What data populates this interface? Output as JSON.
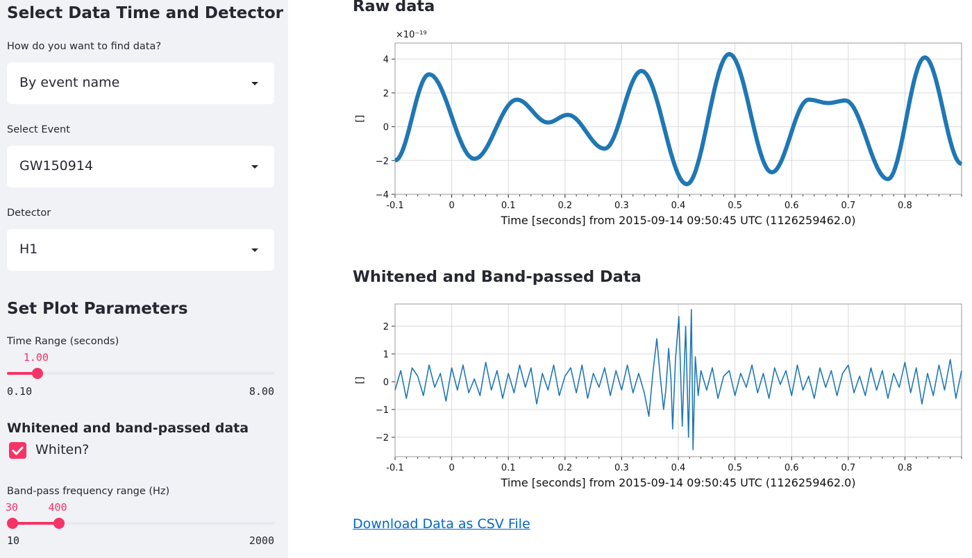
{
  "sidebar": {
    "title": "Select Data Time and Detector",
    "find_label": "How do you want to find data?",
    "find_value": "By event name",
    "event_label": "Select Event",
    "event_value": "GW150914",
    "detector_label": "Detector",
    "detector_value": "H1",
    "plot_params_title": "Set Plot Parameters",
    "time_range": {
      "label": "Time Range (seconds)",
      "value": 1.0,
      "value_text": "1.00",
      "min": 0.1,
      "max": 8.0,
      "min_text": "0.10",
      "max_text": "8.00"
    },
    "whiten_section_title": "Whitened and band-passed data",
    "whiten_checkbox": {
      "label": "Whiten?",
      "checked": true
    },
    "bandpass": {
      "label": "Band-pass frequency range (Hz)",
      "low": 30,
      "high": 400,
      "low_text": "30",
      "high_text": "400",
      "min": 10,
      "max": 2000,
      "min_text": "10",
      "max_text": "2000"
    },
    "accent_color": "#f63366"
  },
  "main": {
    "raw_title": "Raw data",
    "whitened_title": "Whitened and Band-passed Data",
    "download_link": "Download Data as CSV File"
  },
  "chart_data": [
    {
      "type": "line",
      "title": "",
      "xlabel": "Time [seconds] from 2015-09-14 09:50:45 UTC (1126259462.0)",
      "ylabel": "[]",
      "y_offset_label": "×10⁻¹⁹",
      "xlim": [
        -0.1,
        0.9
      ],
      "ylim": [
        -4.0,
        4.95
      ],
      "xticks": [
        "-0.1",
        "0",
        "0.1",
        "0.2",
        "0.3",
        "0.4",
        "0.5",
        "0.6",
        "0.7",
        "0.8"
      ],
      "yticks": [
        "−4",
        "−2",
        "0",
        "2",
        "4"
      ],
      "grid": true,
      "color": "#1f77b4",
      "series": [
        {
          "x": [
            -0.1,
            -0.04,
            0.04,
            0.115,
            0.17,
            0.205,
            0.27,
            0.335,
            0.415,
            0.49,
            0.565,
            0.63,
            0.665,
            0.695,
            0.77,
            0.835,
            0.9
          ],
          "y": [
            -2.0,
            3.1,
            -1.9,
            1.6,
            0.25,
            0.7,
            -1.3,
            3.3,
            -3.4,
            4.3,
            -2.7,
            1.6,
            1.4,
            1.55,
            -3.1,
            4.1,
            -2.2
          ]
        }
      ]
    },
    {
      "type": "line",
      "title": "",
      "xlabel": "Time [seconds] from 2015-09-14 09:50:45 UTC (1126259462.0)",
      "ylabel": "[]",
      "xlim": [
        -0.1,
        0.9
      ],
      "ylim": [
        -2.7,
        2.8
      ],
      "xticks": [
        "-0.1",
        "0",
        "0.1",
        "0.2",
        "0.3",
        "0.4",
        "0.5",
        "0.6",
        "0.7",
        "0.8"
      ],
      "yticks": [
        "−2",
        "−1",
        "0",
        "1",
        "2"
      ],
      "grid": true,
      "color": "#1f77b4",
      "series": [
        {
          "x": [
            -0.1,
            -0.09,
            -0.08,
            -0.07,
            -0.06,
            -0.05,
            -0.04,
            -0.03,
            -0.02,
            -0.01,
            0,
            0.01,
            0.02,
            0.03,
            0.04,
            0.05,
            0.06,
            0.07,
            0.08,
            0.09,
            0.1,
            0.11,
            0.12,
            0.13,
            0.14,
            0.15,
            0.16,
            0.17,
            0.18,
            0.19,
            0.2,
            0.21,
            0.22,
            0.23,
            0.24,
            0.25,
            0.26,
            0.27,
            0.28,
            0.29,
            0.3,
            0.31,
            0.32,
            0.33,
            0.34,
            0.348,
            0.355,
            0.362,
            0.368,
            0.374,
            0.378,
            0.383,
            0.387,
            0.39,
            0.395,
            0.401,
            0.407,
            0.413,
            0.418,
            0.423,
            0.426,
            0.43,
            0.435,
            0.44,
            0.45,
            0.46,
            0.47,
            0.48,
            0.49,
            0.5,
            0.51,
            0.52,
            0.53,
            0.54,
            0.55,
            0.56,
            0.57,
            0.58,
            0.59,
            0.6,
            0.61,
            0.62,
            0.63,
            0.64,
            0.65,
            0.66,
            0.67,
            0.68,
            0.69,
            0.7,
            0.71,
            0.72,
            0.73,
            0.74,
            0.75,
            0.76,
            0.77,
            0.78,
            0.79,
            0.8,
            0.81,
            0.82,
            0.83,
            0.84,
            0.85,
            0.86,
            0.87,
            0.88,
            0.89,
            0.9
          ],
          "y": [
            -0.3,
            0.4,
            -0.6,
            0.5,
            0.2,
            -0.5,
            0.6,
            -0.2,
            0.3,
            -0.7,
            0.5,
            -0.3,
            0.6,
            -0.4,
            0.1,
            -0.5,
            0.7,
            -0.3,
            0.4,
            -0.6,
            0.3,
            -0.4,
            0.6,
            -0.2,
            0.5,
            -0.8,
            0.3,
            -0.3,
            0.6,
            -0.5,
            0.2,
            0.5,
            -0.4,
            0.6,
            -0.6,
            0.3,
            -0.2,
            0.5,
            -0.5,
            0.4,
            -0.3,
            0.6,
            -0.4,
            0.3,
            -0.4,
            -1.25,
            0.3,
            1.55,
            0.2,
            -1.0,
            -0.3,
            1.2,
            0.1,
            -1.7,
            0.8,
            2.35,
            -1.6,
            2.0,
            -2.0,
            2.6,
            -2.45,
            0.9,
            -0.5,
            0.4,
            -0.3,
            0.5,
            -0.6,
            0.2,
            0.4,
            -0.5,
            0.3,
            -0.2,
            0.6,
            -0.4,
            0.3,
            -0.6,
            0.5,
            -0.1,
            0.4,
            -0.5,
            0.6,
            -0.3,
            0.2,
            -0.6,
            0.5,
            -0.2,
            0.4,
            -0.5,
            0.3,
            0.6,
            -0.4,
            0.2,
            -0.5,
            0.5,
            -0.3,
            0.4,
            -0.6,
            0.3,
            -0.2,
            0.7,
            -0.4,
            0.5,
            -0.8,
            0.3,
            -0.5,
            0.6,
            -0.3,
            0.8,
            -0.6,
            0.4
          ]
        }
      ]
    }
  ]
}
